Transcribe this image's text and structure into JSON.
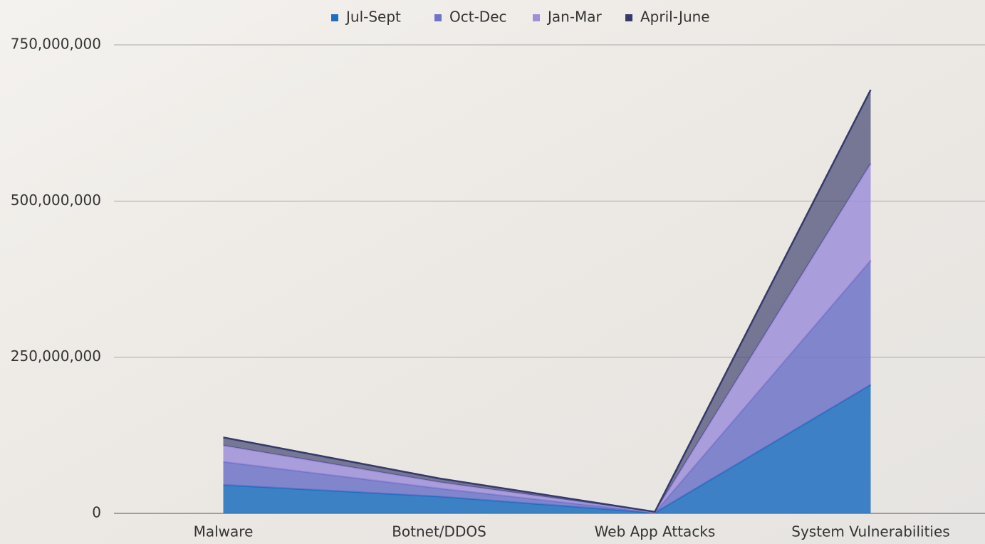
{
  "chart_data": {
    "type": "stacked-area",
    "categories": [
      "Malware",
      "Botnet/DDOS",
      "Web App Attacks",
      "System Vulnerabilities"
    ],
    "series": [
      {
        "name": "Jul-Sept",
        "color": "#1f6fc0",
        "values": [
          45600000,
          27000000,
          1000000,
          206000000
        ]
      },
      {
        "name": "Oct-Dec",
        "color": "#6f74c8",
        "values": [
          37000000,
          13000000,
          500000,
          199000000
        ]
      },
      {
        "name": "Jan-Mar",
        "color": "#9f8fd9",
        "values": [
          26000000,
          10000000,
          500000,
          155000000
        ]
      },
      {
        "name": "April-June",
        "color": "#363a6a",
        "values": [
          13000000,
          6000000,
          500000,
          118000000
        ]
      }
    ],
    "ylim": [
      0,
      750000000
    ],
    "yticks": [
      0,
      {
        "value": 250000000,
        "label": "250,000,000"
      },
      {
        "value": 500000000,
        "label": "500,000,000"
      },
      {
        "value": 750000000,
        "label": "750,000,000"
      }
    ],
    "grid": true,
    "legend": "top"
  }
}
